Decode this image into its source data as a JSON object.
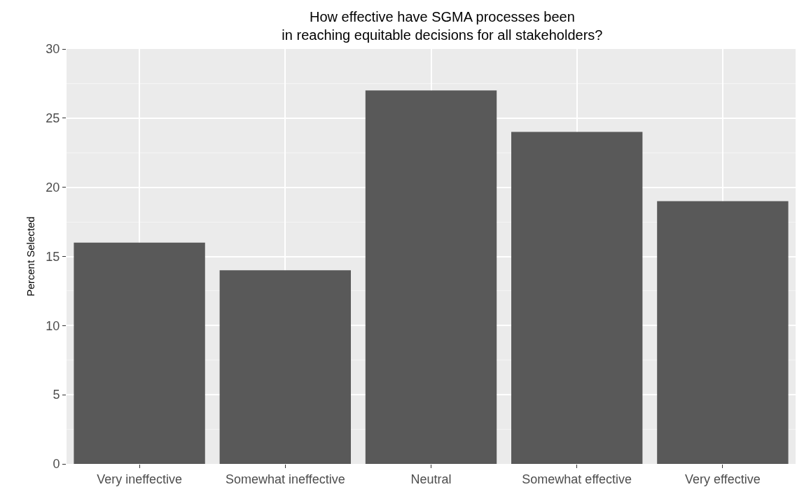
{
  "chart_data": {
    "type": "bar",
    "title": "How effective have SGMA processes been\nin reaching equitable decisions for all stakeholders?",
    "ylabel": "Percent Selected",
    "categories": [
      "Very ineffective",
      "Somewhat ineffective",
      "Neutral",
      "Somewhat effective",
      "Very effective"
    ],
    "values": [
      16,
      14,
      27,
      24,
      19
    ],
    "color": "#595959",
    "ylim": [
      0,
      30
    ],
    "yticks": [
      0,
      5,
      10,
      15,
      20,
      25,
      30
    ],
    "grid": true
  }
}
